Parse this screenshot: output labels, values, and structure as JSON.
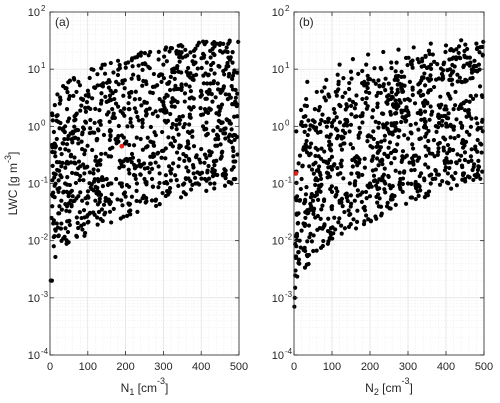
{
  "chart_data": [
    {
      "panel_label": "(a)",
      "type": "scatter",
      "xlabel": "N",
      "xlabel_sub": "1",
      "xlabel_unit": "[cm",
      "xlabel_unit_exp": "-3",
      "xlabel_unit_end": "]",
      "ylabel": "LWC [g m",
      "ylabel_exp": "-3",
      "ylabel_end": "]",
      "xlim": [
        0,
        500
      ],
      "ylim": [
        0.0001,
        100
      ],
      "yscale": "log",
      "xticks": [
        0,
        100,
        200,
        300,
        400,
        500
      ],
      "xtick_labels": [
        "0",
        "100",
        "200",
        "300",
        "400",
        "500"
      ],
      "yticks": [
        0.0001,
        0.001,
        0.01,
        0.1,
        1,
        10,
        100
      ],
      "ytick_labels": [
        "10",
        "10",
        "10",
        "10",
        "10",
        "10",
        "10"
      ],
      "ytick_exponents": [
        "-4",
        "-3",
        "-2",
        "-1",
        "0",
        "1",
        "2"
      ],
      "grid": true,
      "marker_color": "#000000",
      "highlight_color": "#e8211a",
      "highlight_point": {
        "x": 190,
        "y": 0.45
      },
      "points": [
        [
          2,
          0.002
        ],
        [
          5,
          0.002
        ],
        [
          4,
          0.025
        ],
        [
          6,
          0.04
        ],
        [
          8,
          0.06
        ],
        [
          10,
          0.008
        ],
        [
          12,
          0.012
        ],
        [
          15,
          0.015
        ],
        [
          18,
          0.02
        ],
        [
          22,
          0.03
        ],
        [
          25,
          0.04
        ],
        [
          10,
          0.15
        ],
        [
          14,
          0.3
        ],
        [
          18,
          0.6
        ],
        [
          22,
          1.2
        ],
        [
          26,
          2.5
        ],
        [
          12,
          0.5
        ],
        [
          20,
          0.08
        ],
        [
          30,
          0.05
        ],
        [
          35,
          0.07
        ],
        [
          40,
          0.1
        ],
        [
          45,
          0.04
        ],
        [
          50,
          0.045
        ],
        [
          55,
          0.05
        ],
        [
          60,
          0.06
        ],
        [
          65,
          0.05
        ],
        [
          70,
          0.055
        ],
        [
          75,
          0.06
        ],
        [
          80,
          0.07
        ],
        [
          85,
          0.05
        ],
        [
          30,
          0.2
        ],
        [
          35,
          0.5
        ],
        [
          40,
          1.0
        ],
        [
          45,
          2.0
        ],
        [
          50,
          3.0
        ],
        [
          55,
          0.3
        ],
        [
          60,
          0.8
        ],
        [
          65,
          1.5
        ],
        [
          70,
          4.0
        ],
        [
          75,
          6.0
        ],
        [
          80,
          0.2
        ],
        [
          85,
          0.4
        ],
        [
          90,
          0.9
        ],
        [
          95,
          1.8
        ],
        [
          100,
          3.5
        ],
        [
          105,
          7.0
        ],
        [
          110,
          10.0
        ],
        [
          115,
          0.15
        ],
        [
          120,
          0.25
        ],
        [
          125,
          0.6
        ],
        [
          130,
          1.2
        ],
        [
          135,
          2.5
        ],
        [
          140,
          5.0
        ],
        [
          145,
          12.0
        ],
        [
          150,
          0.12
        ],
        [
          155,
          0.3
        ],
        [
          160,
          0.7
        ],
        [
          165,
          1.4
        ],
        [
          170,
          3.0
        ],
        [
          175,
          6.0
        ],
        [
          180,
          14.0
        ],
        [
          185,
          0.1
        ],
        [
          195,
          0.2
        ],
        [
          200,
          0.5
        ],
        [
          205,
          1.0
        ],
        [
          210,
          2.0
        ],
        [
          215,
          4.0
        ],
        [
          220,
          8.0
        ],
        [
          225,
          16.0
        ],
        [
          230,
          0.1
        ],
        [
          235,
          0.25
        ],
        [
          240,
          0.6
        ],
        [
          245,
          1.3
        ],
        [
          250,
          2.6
        ],
        [
          255,
          5.5
        ],
        [
          260,
          11.0
        ],
        [
          265,
          20.0
        ],
        [
          270,
          0.12
        ],
        [
          275,
          0.3
        ],
        [
          280,
          0.7
        ],
        [
          285,
          1.5
        ],
        [
          290,
          3.0
        ],
        [
          295,
          6.0
        ],
        [
          300,
          12.0
        ],
        [
          305,
          22.0
        ],
        [
          310,
          0.1
        ],
        [
          315,
          0.2
        ],
        [
          320,
          0.5
        ],
        [
          325,
          1.1
        ],
        [
          330,
          2.2
        ],
        [
          335,
          4.5
        ],
        [
          340,
          9.0
        ],
        [
          345,
          18.0
        ],
        [
          350,
          25.0
        ],
        [
          355,
          0.1
        ],
        [
          360,
          0.3
        ],
        [
          365,
          0.8
        ],
        [
          370,
          1.6
        ],
        [
          375,
          3.2
        ],
        [
          380,
          6.5
        ],
        [
          385,
          13.0
        ],
        [
          390,
          26.0
        ],
        [
          395,
          0.15
        ],
        [
          400,
          0.4
        ],
        [
          405,
          1.0
        ],
        [
          410,
          2.0
        ],
        [
          415,
          4.0
        ],
        [
          420,
          8.0
        ],
        [
          425,
          16.0
        ],
        [
          430,
          28.0
        ],
        [
          435,
          0.1
        ],
        [
          440,
          0.25
        ],
        [
          445,
          0.6
        ],
        [
          450,
          1.2
        ],
        [
          455,
          2.4
        ],
        [
          460,
          5.0
        ],
        [
          465,
          10.0
        ],
        [
          470,
          20.0
        ],
        [
          475,
          30.0
        ],
        [
          480,
          0.1
        ],
        [
          485,
          0.3
        ],
        [
          490,
          0.7
        ],
        [
          495,
          1.5
        ],
        [
          498,
          30.0
        ],
        [
          100,
          0.06
        ],
        [
          110,
          0.08
        ],
        [
          120,
          0.05
        ],
        [
          130,
          0.07
        ],
        [
          140,
          0.09
        ],
        [
          160,
          0.1
        ],
        [
          175,
          0.12
        ],
        [
          190,
          0.1
        ],
        [
          210,
          0.15
        ],
        [
          230,
          0.2
        ],
        [
          250,
          0.12
        ],
        [
          270,
          0.18
        ],
        [
          290,
          0.15
        ],
        [
          320,
          0.15
        ],
        [
          340,
          0.2
        ],
        [
          360,
          0.12
        ],
        [
          380,
          0.15
        ],
        [
          410,
          0.12
        ],
        [
          430,
          0.18
        ],
        [
          460,
          0.15
        ],
        [
          490,
          0.12
        ]
      ],
      "n_points_approx": 1000
    },
    {
      "panel_label": "(b)",
      "type": "scatter",
      "xlabel": "N",
      "xlabel_sub": "2",
      "xlabel_unit": "[cm",
      "xlabel_unit_exp": "-3",
      "xlabel_unit_end": "]",
      "xlim": [
        0,
        500
      ],
      "ylim": [
        0.0001,
        100
      ],
      "yscale": "log",
      "xticks": [
        0,
        100,
        200,
        300,
        400,
        500
      ],
      "xtick_labels": [
        "0",
        "100",
        "200",
        "300",
        "400",
        "500"
      ],
      "yticks": [
        0.0001,
        0.001,
        0.01,
        0.1,
        1,
        10,
        100
      ],
      "ytick_labels": [
        "10",
        "10",
        "10",
        "10",
        "10",
        "10",
        "10"
      ],
      "ytick_exponents": [
        "-4",
        "-3",
        "-2",
        "-1",
        "0",
        "1",
        "2"
      ],
      "grid": true,
      "marker_color": "#000000",
      "highlight_color": "#e8211a",
      "highlight_point": {
        "x": 5,
        "y": 0.15
      },
      "points": [
        [
          1,
          0.0007
        ],
        [
          2,
          0.001
        ],
        [
          3,
          0.0015
        ],
        [
          4,
          0.003
        ],
        [
          5,
          0.005
        ],
        [
          6,
          0.008
        ],
        [
          8,
          0.012
        ],
        [
          10,
          0.02
        ],
        [
          12,
          0.03
        ],
        [
          15,
          0.05
        ],
        [
          18,
          0.08
        ],
        [
          20,
          0.12
        ],
        [
          22,
          0.2
        ],
        [
          25,
          0.4
        ],
        [
          28,
          0.8
        ],
        [
          30,
          1.5
        ],
        [
          32,
          3.0
        ],
        [
          35,
          6.0
        ],
        [
          15,
          0.01
        ],
        [
          20,
          0.015
        ],
        [
          25,
          0.02
        ],
        [
          30,
          0.025
        ],
        [
          35,
          0.03
        ],
        [
          40,
          0.035
        ],
        [
          45,
          0.04
        ],
        [
          50,
          0.05
        ],
        [
          55,
          0.06
        ],
        [
          60,
          0.07
        ],
        [
          65,
          0.08
        ],
        [
          70,
          0.09
        ],
        [
          40,
          0.2
        ],
        [
          45,
          0.5
        ],
        [
          50,
          1.0
        ],
        [
          55,
          2.0
        ],
        [
          60,
          4.0
        ],
        [
          65,
          0.3
        ],
        [
          70,
          0.8
        ],
        [
          75,
          1.6
        ],
        [
          80,
          3.2
        ],
        [
          85,
          6.5
        ],
        [
          90,
          0.15
        ],
        [
          95,
          0.4
        ],
        [
          100,
          1.0
        ],
        [
          105,
          2.0
        ],
        [
          110,
          4.0
        ],
        [
          115,
          8.0
        ],
        [
          120,
          12.0
        ],
        [
          125,
          0.2
        ],
        [
          130,
          0.5
        ],
        [
          135,
          1.1
        ],
        [
          140,
          2.2
        ],
        [
          145,
          4.5
        ],
        [
          150,
          9.0
        ],
        [
          155,
          15.0
        ],
        [
          160,
          0.1
        ],
        [
          165,
          0.3
        ],
        [
          170,
          0.7
        ],
        [
          175,
          1.5
        ],
        [
          180,
          3.0
        ],
        [
          185,
          6.0
        ],
        [
          190,
          12.0
        ],
        [
          195,
          18.0
        ],
        [
          200,
          0.1
        ],
        [
          205,
          0.25
        ],
        [
          210,
          0.6
        ],
        [
          215,
          1.2
        ],
        [
          220,
          2.5
        ],
        [
          225,
          5.0
        ],
        [
          230,
          10.0
        ],
        [
          235,
          20.0
        ],
        [
          240,
          0.1
        ],
        [
          245,
          0.3
        ],
        [
          250,
          0.8
        ],
        [
          255,
          1.6
        ],
        [
          260,
          3.2
        ],
        [
          265,
          6.5
        ],
        [
          270,
          13.0
        ],
        [
          275,
          22.0
        ],
        [
          280,
          0.12
        ],
        [
          285,
          0.3
        ],
        [
          290,
          0.7
        ],
        [
          295,
          1.5
        ],
        [
          300,
          3.0
        ],
        [
          305,
          6.0
        ],
        [
          310,
          12.0
        ],
        [
          315,
          24.0
        ],
        [
          320,
          0.1
        ],
        [
          325,
          0.25
        ],
        [
          330,
          0.6
        ],
        [
          335,
          1.3
        ],
        [
          340,
          2.6
        ],
        [
          345,
          5.2
        ],
        [
          350,
          10.5
        ],
        [
          355,
          21.0
        ],
        [
          360,
          28.0
        ],
        [
          365,
          0.12
        ],
        [
          370,
          0.3
        ],
        [
          375,
          0.8
        ],
        [
          380,
          1.6
        ],
        [
          385,
          3.3
        ],
        [
          390,
          6.6
        ],
        [
          395,
          13.0
        ],
        [
          400,
          26.0
        ],
        [
          405,
          0.15
        ],
        [
          410,
          0.4
        ],
        [
          415,
          1.0
        ],
        [
          420,
          2.0
        ],
        [
          425,
          4.0
        ],
        [
          430,
          8.0
        ],
        [
          435,
          16.0
        ],
        [
          440,
          32.0
        ],
        [
          445,
          0.15
        ],
        [
          450,
          0.35
        ],
        [
          455,
          0.8
        ],
        [
          460,
          1.7
        ],
        [
          465,
          3.4
        ],
        [
          470,
          7.0
        ],
        [
          475,
          14.0
        ],
        [
          480,
          28.0
        ],
        [
          485,
          0.2
        ],
        [
          490,
          0.5
        ],
        [
          495,
          1.2
        ],
        [
          498,
          30.0
        ],
        [
          100,
          0.04
        ],
        [
          120,
          0.05
        ],
        [
          140,
          0.06
        ],
        [
          160,
          0.05
        ],
        [
          180,
          0.07
        ],
        [
          200,
          0.06
        ],
        [
          220,
          0.08
        ],
        [
          240,
          0.07
        ],
        [
          260,
          0.09
        ],
        [
          280,
          0.08
        ],
        [
          300,
          0.1
        ],
        [
          330,
          0.09
        ],
        [
          360,
          0.1
        ],
        [
          390,
          0.11
        ],
        [
          420,
          0.12
        ],
        [
          450,
          0.12
        ],
        [
          480,
          0.13
        ]
      ],
      "n_points_approx": 1000
    }
  ]
}
